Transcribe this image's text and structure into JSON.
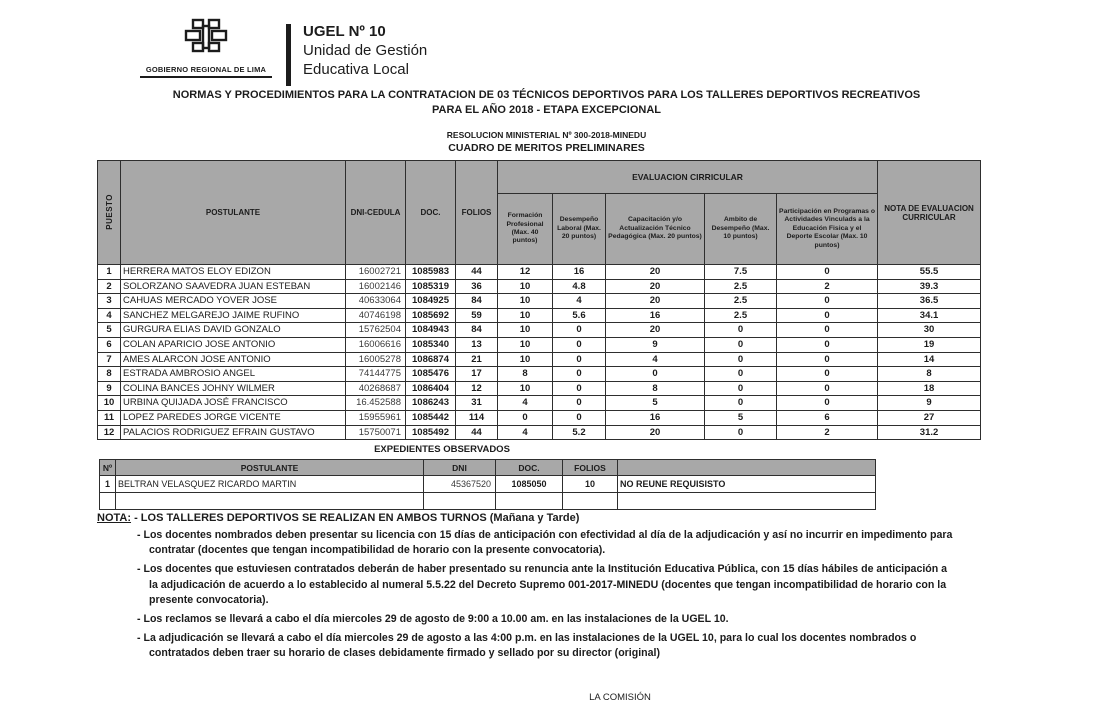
{
  "letterhead": {
    "org_caption": "GOBIERNO REGIONAL DE LIMA",
    "ugel_title": "UGEL Nº 10",
    "ugel_line2": "Unidad de Gestión",
    "ugel_line3": "Educativa Local"
  },
  "titles": {
    "line1": "NORMAS Y PROCEDIMIENTOS PARA LA CONTRATACION DE 03 TÉCNICOS DEPORTIVOS PARA LOS TALLERES DEPORTIVOS RECREATIVOS",
    "line2": "PARA EL AÑO 2018 - ETAPA EXCEPCIONAL",
    "resolution": "RESOLUCION MINISTERIAL Nº 300-2018-MINEDU",
    "table_title": "CUADRO DE MERITOS PRELIMINARES"
  },
  "merit_table": {
    "headers": {
      "puesto": "PUESTO",
      "postulante": "POSTULANTE",
      "dni": "DNI-CEDULA",
      "doc": "DOC.",
      "folios": "FOLIOS",
      "group": "EVALUACION CIRRICULAR",
      "sub": [
        "Formación Profesional (Max. 40 puntos)",
        "Desempeño Laboral (Max. 20 puntos)",
        "Capacitación y/o Actualización Técnico Pedagógica (Max. 20 puntos)",
        "Ambito de Desempeño (Max. 10 puntos)",
        "Participación en Programas o Actividades Vinculads a la Educación Fisica y el Deporte Escolar (Max. 10 puntos)"
      ],
      "nota": "NOTA DE EVALUACION CURRICULAR"
    },
    "rows": [
      [
        "1",
        "HERRERA MATOS ELOY EDIZON",
        "16002721",
        "1085983",
        "44",
        "12",
        "16",
        "20",
        "7.5",
        "0",
        "55.5"
      ],
      [
        "2",
        "SOLORZANO SAAVEDRA JUAN ESTEBAN",
        "16002146",
        "1085319",
        "36",
        "10",
        "4.8",
        "20",
        "2.5",
        "2",
        "39.3"
      ],
      [
        "3",
        "CAHUAS MERCADO YOVER JOSE",
        "40633064",
        "1084925",
        "84",
        "10",
        "4",
        "20",
        "2.5",
        "0",
        "36.5"
      ],
      [
        "4",
        "SANCHEZ MELGAREJO JAIME RUFINO",
        "40746198",
        "1085692",
        "59",
        "10",
        "5.6",
        "16",
        "2.5",
        "0",
        "34.1"
      ],
      [
        "5",
        "GURGURA ELIAS DAVID GONZALO",
        "15762504",
        "1084943",
        "84",
        "10",
        "0",
        "20",
        "0",
        "0",
        "30"
      ],
      [
        "6",
        "COLAN APARICIO JOSE ANTONIO",
        "16006616",
        "1085340",
        "13",
        "10",
        "0",
        "9",
        "0",
        "0",
        "19"
      ],
      [
        "7",
        "AMES ALARCON JOSE ANTONIO",
        "16005278",
        "1086874",
        "21",
        "10",
        "0",
        "4",
        "0",
        "0",
        "14"
      ],
      [
        "8",
        "ESTRADA AMBROSIO ANGEL",
        "74144775",
        "1085476",
        "17",
        "8",
        "0",
        "0",
        "0",
        "0",
        "8"
      ],
      [
        "9",
        "COLINA BANCES JOHNY WILMER",
        "40268687",
        "1086404",
        "12",
        "10",
        "0",
        "8",
        "0",
        "0",
        "18"
      ],
      [
        "10",
        "URBINA QUIJADA JOSÉ FRANCISCO",
        "16.452588",
        "1086243",
        "31",
        "4",
        "0",
        "5",
        "0",
        "0",
        "9"
      ],
      [
        "11",
        "LOPEZ PAREDES JORGE VICENTE",
        "15955961",
        "1085442",
        "114",
        "0",
        "0",
        "16",
        "5",
        "6",
        "27"
      ],
      [
        "12",
        "PALACIOS RODRIGUEZ EFRAIN GUSTAVO",
        "15750071",
        "1085492",
        "44",
        "4",
        "5.2",
        "20",
        "0",
        "2",
        "31.2"
      ]
    ]
  },
  "observed_table": {
    "title": "EXPEDIENTES OBSERVADOS",
    "headers": {
      "num": "Nº",
      "postulante": "POSTULANTE",
      "dni": "DNI",
      "doc": "DOC.",
      "folios": "FOLIOS",
      "blank": ""
    },
    "rows": [
      [
        "1",
        "BELTRAN VELASQUEZ RICARDO MARTIN",
        "45367520",
        "1085050",
        "10",
        "NO REUNE REQUISISTO"
      ],
      [
        "",
        "",
        "",
        "",
        "",
        ""
      ]
    ]
  },
  "nota": {
    "label": "NOTA:",
    "heading": "- LOS TALLERES DEPORTIVOS SE REALIZAN EN AMBOS TURNOS (Mañana y Tarde)",
    "bullets": [
      "- Los docentes nombrados deben presentar su licencia con 15 días de anticipación con efectividad al día de la adjudicación y así no incurrir en impedimento para contratar (docentes que tengan incompatibilidad de horario con la presente convocatoria).",
      "- Los docentes que estuviesen contratados deberán de haber presentado su renuncia ante la Institución Educativa Pública, con 15 días hábiles de anticipación a la adjudicación de acuerdo a lo establecido al numeral 5.5.22 del Decreto Supremo 001-2017-MINEDU (docentes que tengan incompatibilidad de horario con la presente convocatoria).",
      "- Los reclamos se llevará a cabo el día miercoles 29 de agosto de 9:00 a 10.00 am. en las instalaciones de la UGEL 10.",
      "- La adjudicación se llevará a cabo el día miercoles 29 de agosto a las 4:00 p.m. en las instalaciones de la UGEL 10, para lo cual los docentes nombrados o contratados deben traer su horario de clases debidamente firmado y sellado por su director (original)"
    ]
  },
  "footer": {
    "signature": "LA COMISIÓN"
  },
  "colors": {
    "header_gray": "#a8a8a8",
    "border": "#2e2e2e",
    "ink": "#1c1c1c"
  }
}
